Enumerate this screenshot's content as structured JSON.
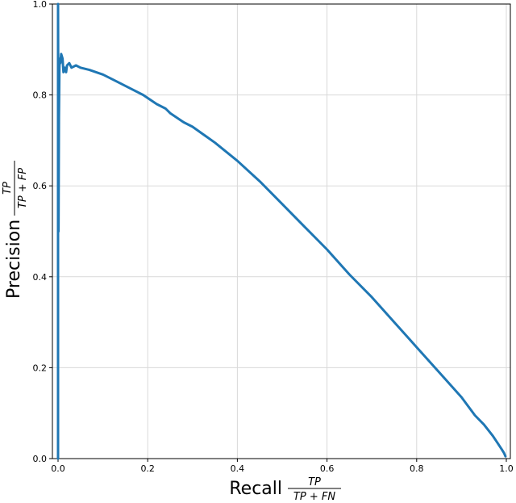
{
  "chart_data": {
    "type": "line",
    "title": "",
    "xlabel": "Recall",
    "xlabel_fraction": {
      "numerator": "TP",
      "denominator": "TP + FN"
    },
    "ylabel": "Precision",
    "ylabel_fraction": {
      "numerator": "TP",
      "denominator": "TP + FP"
    },
    "xlim": [
      0.0,
      1.0
    ],
    "ylim": [
      0.0,
      1.0
    ],
    "xticks": [
      "0.0",
      "0.2",
      "0.4",
      "0.6",
      "0.8",
      "1.0"
    ],
    "yticks": [
      "0.0",
      "0.2",
      "0.4",
      "0.6",
      "0.8",
      "1.0"
    ],
    "grid": true,
    "legend": "none",
    "series": [
      {
        "color": "#1f77b4",
        "x": [
          0.0,
          0.0,
          0.001,
          0.002,
          0.003,
          0.004,
          0.005,
          0.007,
          0.01,
          0.012,
          0.015,
          0.018,
          0.02,
          0.025,
          0.03,
          0.04,
          0.05,
          0.07,
          0.1,
          0.13,
          0.16,
          0.19,
          0.22,
          0.24,
          0.25,
          0.28,
          0.3,
          0.35,
          0.4,
          0.45,
          0.5,
          0.55,
          0.6,
          0.65,
          0.7,
          0.75,
          0.8,
          0.85,
          0.9,
          0.93,
          0.95,
          0.97,
          0.98,
          0.99,
          0.995,
          0.998
        ],
        "y": [
          0.0,
          1.0,
          0.5,
          0.75,
          0.86,
          0.88,
          0.87,
          0.89,
          0.88,
          0.85,
          0.86,
          0.85,
          0.865,
          0.87,
          0.86,
          0.865,
          0.86,
          0.855,
          0.845,
          0.83,
          0.815,
          0.8,
          0.78,
          0.77,
          0.76,
          0.74,
          0.73,
          0.695,
          0.655,
          0.61,
          0.56,
          0.51,
          0.46,
          0.405,
          0.355,
          0.3,
          0.245,
          0.19,
          0.135,
          0.095,
          0.075,
          0.05,
          0.035,
          0.02,
          0.012,
          0.005
        ]
      }
    ]
  }
}
